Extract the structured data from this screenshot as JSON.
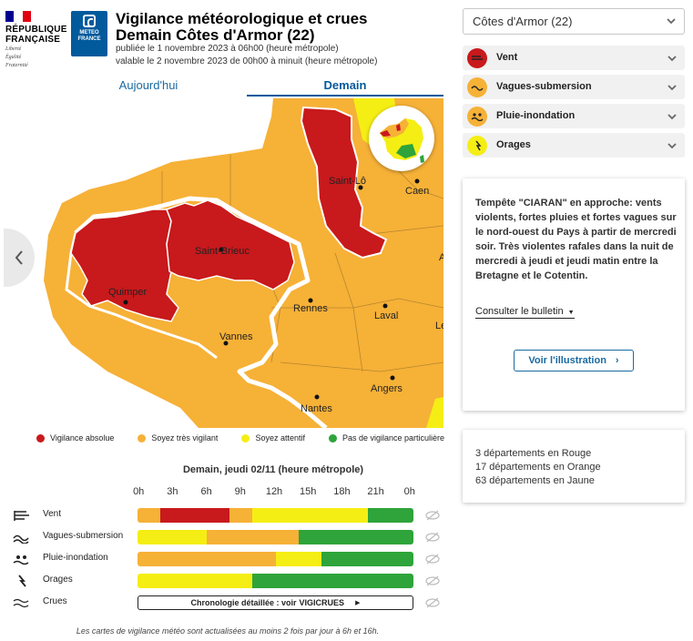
{
  "header": {
    "rf_title": "RÉPUBLIQUE\nFRANÇAISE",
    "rf_title_l1": "RÉPUBLIQUE",
    "rf_title_l2": "FRANÇAISE",
    "rf_motto_l1": "Liberté",
    "rf_motto_l2": "Égalité",
    "rf_motto_l3": "Fraternité",
    "mf_l1": "METEO",
    "mf_l2": "FRANCE",
    "title_l1": "Vigilance météorologique et crues",
    "title_l2": "Demain Côtes d'Armor (22)",
    "published": "publiée le 1 novembre 2023 à 06h00 (heure métropole)",
    "valid": "valable le 2 novembre 2023 de 00h00 à minuit (heure métropole)"
  },
  "tabs": [
    {
      "label": "Aujourd'hui",
      "active": false
    },
    {
      "label": "Demain",
      "active": true
    }
  ],
  "map": {
    "cities": [
      "Saint-Lô",
      "Caen",
      "Saint-Brieuc",
      "Quimper",
      "Rennes",
      "Laval",
      "Vannes",
      "Angers",
      "Nantes"
    ],
    "edge_letters": [
      "A",
      "Le"
    ]
  },
  "legend": [
    {
      "label": "Vigilance absolue",
      "color": "#c8191c"
    },
    {
      "label": "Soyez très vigilant",
      "color": "#f6b137"
    },
    {
      "label": "Soyez attentif",
      "color": "#f5ee14"
    },
    {
      "label": "Pas de vigilance particulière",
      "color": "#2ea43a"
    }
  ],
  "timeline": {
    "title": "Demain, jeudi 02/11 (heure métropole)",
    "hours": [
      "0h",
      "3h",
      "6h",
      "9h",
      "12h",
      "15h",
      "18h",
      "21h",
      "0h"
    ],
    "rows": [
      {
        "label": "Vent",
        "icon": "wind-icon",
        "segments": [
          {
            "hours": 2,
            "level": "orange"
          },
          {
            "hours": 6,
            "level": "red"
          },
          {
            "hours": 2,
            "level": "orange"
          },
          {
            "hours": 10,
            "level": "yellow"
          },
          {
            "hours": 4,
            "level": "green"
          }
        ]
      },
      {
        "label": "Vagues-submersion",
        "icon": "waves-icon",
        "segments": [
          {
            "hours": 6,
            "level": "yellow"
          },
          {
            "hours": 8,
            "level": "orange"
          },
          {
            "hours": 10,
            "level": "green"
          }
        ]
      },
      {
        "label": "Pluie-inondation",
        "icon": "rain-flood-icon",
        "segments": [
          {
            "hours": 12,
            "level": "orange"
          },
          {
            "hours": 4,
            "level": "yellow"
          },
          {
            "hours": 8,
            "level": "green"
          }
        ]
      },
      {
        "label": "Orages",
        "icon": "storm-icon",
        "segments": [
          {
            "hours": 10,
            "level": "yellow"
          },
          {
            "hours": 14,
            "level": "green"
          }
        ]
      }
    ],
    "crues": {
      "label": "Crues",
      "button_text": "Chronologie détaillée : voir",
      "vigicrues": "VIGICRUES"
    }
  },
  "colors": {
    "red": "#c8191c",
    "orange": "#f6b137",
    "yellow": "#f5ee14",
    "green": "#2ea43a"
  },
  "footnote": "Les cartes de vigilance météo sont actualisées au moins 2 fois par jour à 6h et 16h.",
  "sidebar": {
    "department_select": "Côtes d'Armor (22)",
    "phenomena": [
      {
        "label": "Vent",
        "icon": "wind-icon",
        "level": "red"
      },
      {
        "label": "Vagues-submersion",
        "icon": "waves-icon",
        "level": "orange"
      },
      {
        "label": "Pluie-inondation",
        "icon": "rain-flood-icon",
        "level": "orange"
      },
      {
        "label": "Orages",
        "icon": "storm-icon",
        "level": "yellow"
      }
    ],
    "bulletin_text": "Tempête \"CIARAN\" en approche: vents violents, fortes pluies et fortes vagues sur le nord-ouest du Pays à partir de mercredi soir. Très violentes rafales dans la nuit de mercredi à jeudi et jeudi matin entre la Bretagne et le Cotentin.",
    "bulletin_link": "Consulter le bulletin",
    "illustration_button": "Voir l'illustration",
    "stats": [
      "3 départements en Rouge",
      "17 départements en Orange",
      "63 départements en Jaune"
    ]
  }
}
